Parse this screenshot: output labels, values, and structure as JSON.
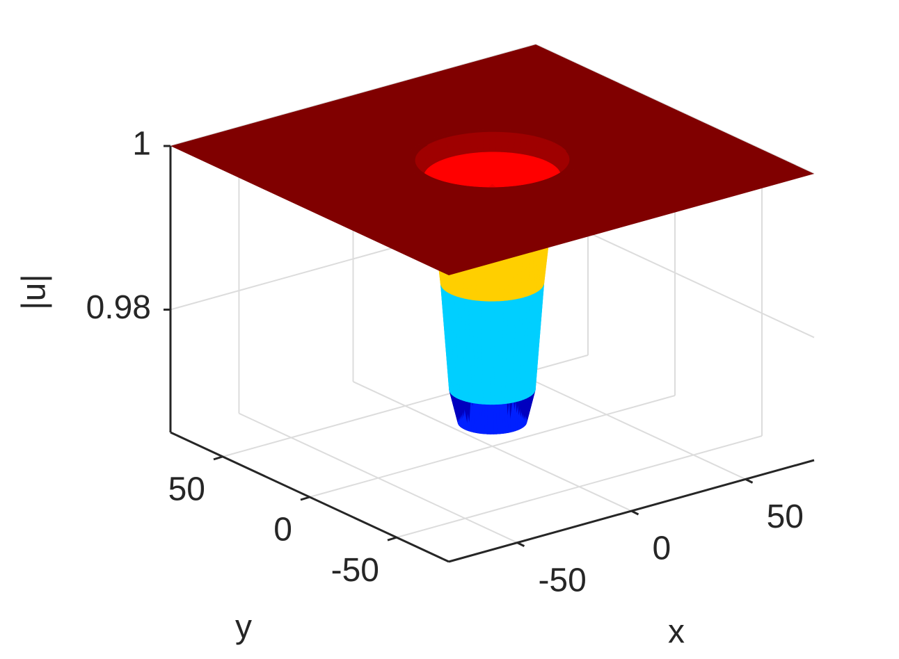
{
  "chart_data": {
    "type": "surface3d",
    "xlabel": "x",
    "ylabel": "y",
    "zlabel": "|u|",
    "xlim": [
      -80,
      80
    ],
    "ylim": [
      -80,
      80
    ],
    "zlim": [
      0.965,
      1
    ],
    "xticks": [
      -50,
      0,
      50
    ],
    "yticks": [
      -50,
      0,
      50
    ],
    "zticks": [
      0.98,
      1
    ],
    "grid": true,
    "colormap": "jet",
    "surface": {
      "r": [
        0,
        3,
        6,
        9,
        12,
        15,
        18,
        21,
        24,
        27,
        30
      ],
      "values": [
        0.997,
        0.996,
        0.99,
        0.978,
        0.968,
        0.972,
        0.985,
        0.994,
        0.998,
        1,
        1
      ]
    }
  }
}
